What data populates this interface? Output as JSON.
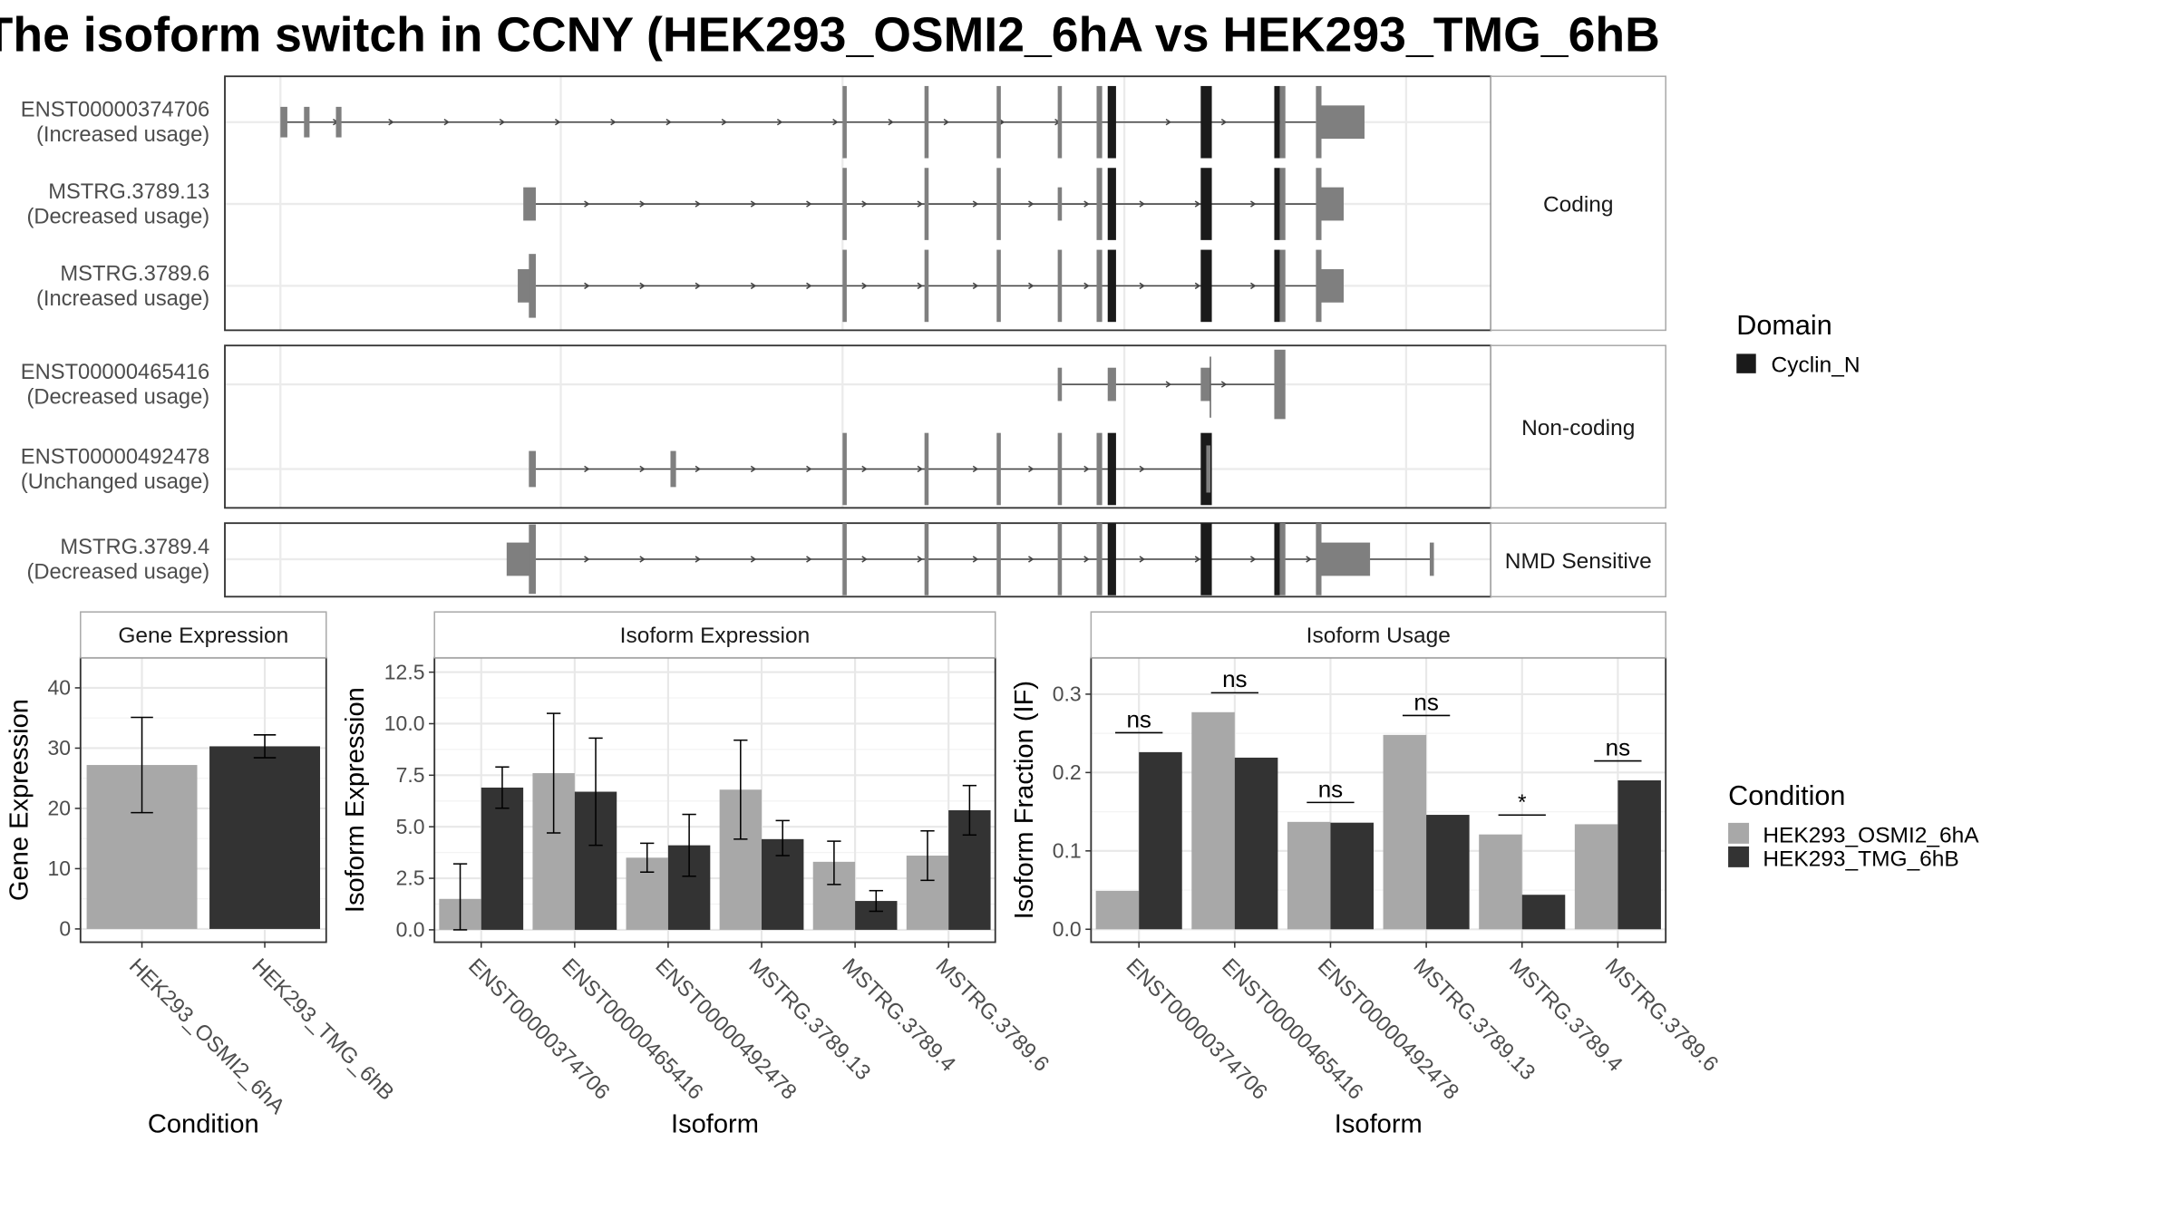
{
  "title": "The isoform switch in CCNY (HEK293_OSMI2_6hA vs HEK293_TMG_6hB",
  "colors": {
    "cond_a": "#a8a8a8",
    "cond_b": "#333333",
    "exon": "#7f7f7f",
    "domain": "#1a1a1a"
  },
  "domain_legend": {
    "title": "Domain",
    "items": [
      "Cyclin_N"
    ]
  },
  "condition_legend": {
    "title": "Condition",
    "items": [
      "HEK293_OSMI2_6hA",
      "HEK293_TMG_6hB"
    ]
  },
  "transcript_panels": [
    {
      "strip": "Coding",
      "transcripts": [
        {
          "id": "ENST00000374706",
          "usage": "(Increased usage)"
        },
        {
          "id": "MSTRG.3789.13",
          "usage": "(Decreased usage)"
        },
        {
          "id": "MSTRG.3789.6",
          "usage": "(Increased usage)"
        }
      ]
    },
    {
      "strip": "Non-coding",
      "transcripts": [
        {
          "id": "ENST00000465416",
          "usage": "(Decreased usage)"
        },
        {
          "id": "ENST00000492478",
          "usage": "(Unchanged usage)"
        }
      ]
    },
    {
      "strip": "NMD Sensitive",
      "transcripts": [
        {
          "id": "MSTRG.3789.4",
          "usage": "(Decreased usage)"
        }
      ]
    }
  ],
  "chart_data": [
    {
      "type": "bar",
      "title": "Gene Expression",
      "xlabel": "Condition",
      "ylabel": "Gene Expression",
      "ylim": [
        0,
        45
      ],
      "yticks": [
        0,
        10,
        20,
        30,
        40
      ],
      "categories": [
        "HEK293_OSMI2_6hA",
        "HEK293_TMG_6hB"
      ],
      "values": [
        27.2,
        30.3
      ],
      "error_low": [
        19.3,
        28.4
      ],
      "error_high": [
        35.1,
        32.2
      ]
    },
    {
      "type": "bar",
      "title": "Isoform Expression",
      "xlabel": "Isoform",
      "ylabel": "Isoform Expression",
      "ylim": [
        0,
        13
      ],
      "yticks": [
        "0.0",
        "2.5",
        "5.0",
        "7.5",
        "10.0",
        "12.5"
      ],
      "categories": [
        "ENST00000374706",
        "ENST00000465416",
        "ENST00000492478",
        "MSTRG.3789.13",
        "MSTRG.3789.4",
        "MSTRG.3789.6"
      ],
      "series": [
        {
          "name": "HEK293_OSMI2_6hA",
          "values": [
            1.5,
            7.6,
            3.5,
            6.8,
            3.3,
            3.6
          ],
          "error_low": [
            0.0,
            4.7,
            2.8,
            4.4,
            2.2,
            2.4
          ],
          "error_high": [
            3.2,
            10.5,
            4.2,
            9.2,
            4.3,
            4.8
          ]
        },
        {
          "name": "HEK293_TMG_6hB",
          "values": [
            6.9,
            6.7,
            4.1,
            4.4,
            1.4,
            5.8
          ],
          "error_low": [
            5.9,
            4.1,
            2.6,
            3.6,
            0.9,
            4.6
          ],
          "error_high": [
            7.9,
            9.3,
            5.6,
            5.3,
            1.9,
            7.0
          ]
        }
      ]
    },
    {
      "type": "bar",
      "title": "Isoform Usage",
      "xlabel": "Isoform",
      "ylabel": "Isoform Fraction (IF)",
      "ylim": [
        0,
        0.33
      ],
      "yticks": [
        "0.0",
        "0.1",
        "0.2",
        "0.3"
      ],
      "categories": [
        "ENST00000374706",
        "ENST00000465416",
        "ENST00000492478",
        "MSTRG.3789.13",
        "MSTRG.3789.4",
        "MSTRG.3789.6"
      ],
      "series": [
        {
          "name": "HEK293_OSMI2_6hA",
          "values": [
            0.049,
            0.277,
            0.137,
            0.248,
            0.121,
            0.134
          ]
        },
        {
          "name": "HEK293_TMG_6hB",
          "values": [
            0.226,
            0.219,
            0.136,
            0.146,
            0.044,
            0.19
          ]
        }
      ],
      "significance": [
        "ns",
        "ns",
        "ns",
        "ns",
        "*",
        "ns"
      ]
    }
  ]
}
